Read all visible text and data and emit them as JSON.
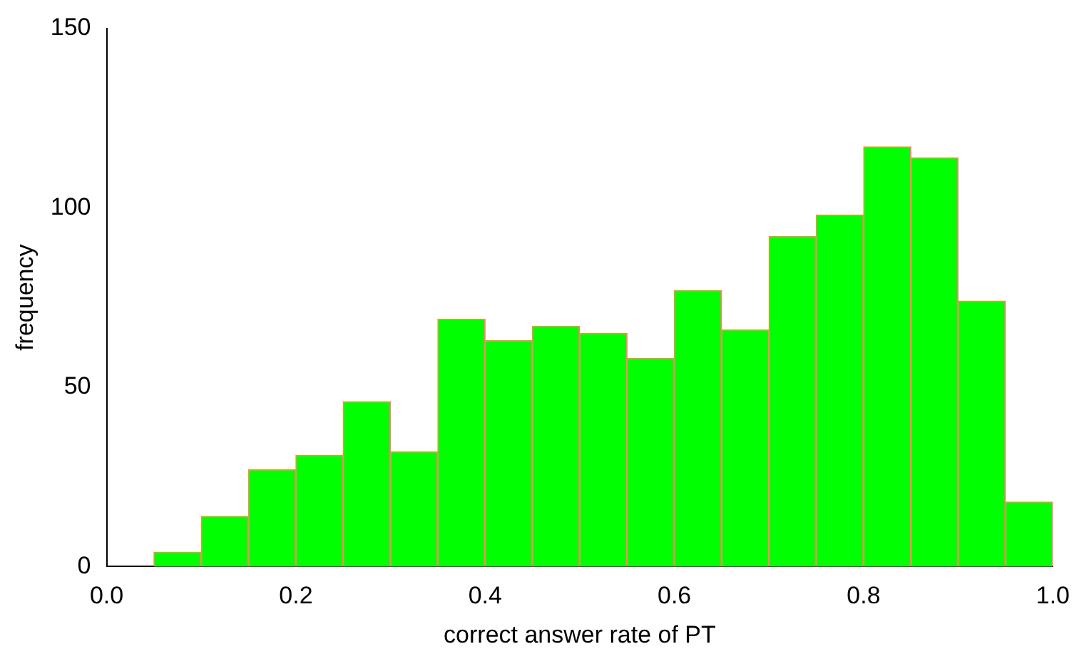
{
  "chart_data": {
    "type": "histogram",
    "xlabel": "correct answer rate of PT",
    "ylabel": "frequency",
    "bins": [
      0,
      0.05,
      0.1,
      0.15,
      0.2,
      0.25,
      0.3,
      0.35,
      0.4,
      0.45,
      0.5,
      0.55,
      0.6,
      0.65,
      0.7,
      0.75,
      0.8,
      0.85,
      0.9,
      0.95,
      1.0
    ],
    "values": [
      0,
      4,
      14,
      27,
      31,
      46,
      32,
      69,
      63,
      67,
      65,
      58,
      77,
      66,
      92,
      98,
      117,
      114,
      74,
      18
    ],
    "color": "#00ff00",
    "xlim": [
      0,
      1
    ],
    "xticks": [
      {
        "value": 0,
        "label": "0.0"
      },
      0.2,
      0.4,
      0.6,
      0.8,
      {
        "value": 1,
        "label": "1.0"
      }
    ],
    "ylim": [
      0,
      150
    ],
    "yticks": [
      0,
      50,
      100,
      150
    ],
    "grid": false,
    "legend": false
  }
}
